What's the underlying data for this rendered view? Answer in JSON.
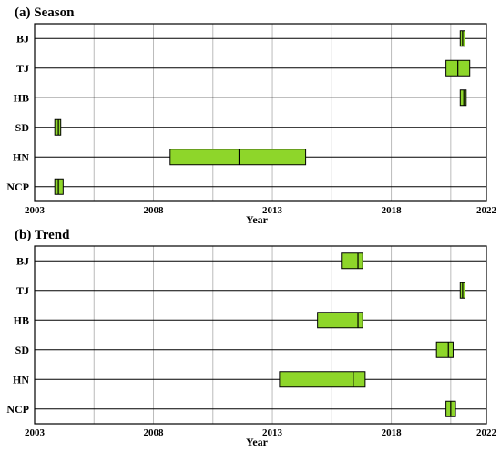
{
  "chart_data": [
    {
      "type": "boxplot",
      "title": "(a) Season",
      "xlabel": "Year",
      "ylabel": "",
      "xlim": [
        2003,
        2022
      ],
      "xticks": [
        2003,
        2008,
        2013,
        2018,
        2022
      ],
      "grid": "vertical",
      "categories": [
        "BJ",
        "TJ",
        "HB",
        "SD",
        "HN",
        "NCP"
      ],
      "colors": {
        "box": "#8ed62a",
        "edge": "#000000",
        "grid": "#bbbbbb"
      },
      "boxes": [
        {
          "category": "BJ",
          "low": 2020.9,
          "median": 2021.0,
          "high": 2021.1
        },
        {
          "category": "TJ",
          "low": 2020.3,
          "median": 2020.8,
          "high": 2021.3
        },
        {
          "category": "HB",
          "low": 2020.9,
          "median": 2021.05,
          "high": 2021.15
        },
        {
          "category": "SD",
          "low": 2003.85,
          "median": 2004.0,
          "high": 2004.1
        },
        {
          "category": "HN",
          "low": 2008.7,
          "median": 2011.6,
          "high": 2014.4
        },
        {
          "category": "NCP",
          "low": 2003.85,
          "median": 2004.0,
          "high": 2004.2
        }
      ]
    },
    {
      "type": "boxplot",
      "title": "(b) Trend",
      "xlabel": "Year",
      "ylabel": "",
      "xlim": [
        2003,
        2022
      ],
      "xticks": [
        2003,
        2008,
        2013,
        2018,
        2022
      ],
      "grid": "vertical",
      "categories": [
        "BJ",
        "TJ",
        "HB",
        "SD",
        "HN",
        "NCP"
      ],
      "colors": {
        "box": "#8ed62a",
        "edge": "#000000",
        "grid": "#bbbbbb"
      },
      "boxes": [
        {
          "category": "BJ",
          "low": 2015.9,
          "median": 2016.6,
          "high": 2016.8
        },
        {
          "category": "TJ",
          "low": 2020.9,
          "median": 2021.0,
          "high": 2021.1
        },
        {
          "category": "HB",
          "low": 2014.9,
          "median": 2016.6,
          "high": 2016.8
        },
        {
          "category": "SD",
          "low": 2019.9,
          "median": 2020.4,
          "high": 2020.6
        },
        {
          "category": "HN",
          "low": 2013.3,
          "median": 2016.4,
          "high": 2016.9
        },
        {
          "category": "NCP",
          "low": 2020.3,
          "median": 2020.5,
          "high": 2020.7
        }
      ]
    }
  ]
}
